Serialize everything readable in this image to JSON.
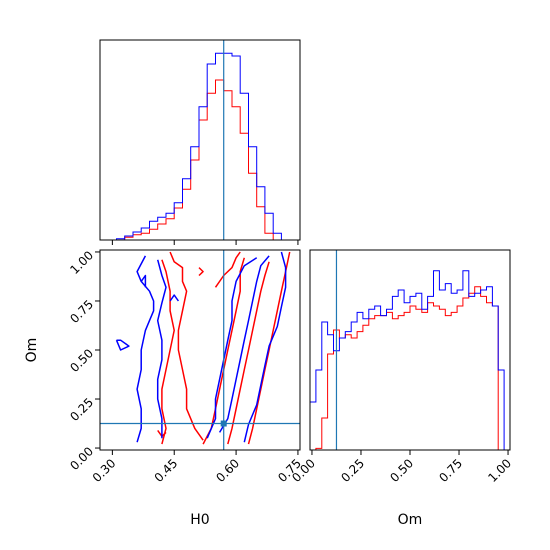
{
  "chart_data": {
    "type": "corner",
    "parameters": [
      "H0",
      "Om"
    ],
    "truth": {
      "H0": 0.57,
      "Om": 0.125
    },
    "truth_color": "#1f77b4",
    "series_colors": {
      "red": "#ff0000",
      "blue": "#0000ff"
    },
    "axes": {
      "H0": {
        "label": "H0",
        "range": [
          0.27,
          0.755
        ],
        "ticks": [
          "0.30",
          "0.45",
          "0.60",
          "0.75"
        ],
        "tick_values": [
          0.3,
          0.45,
          0.6,
          0.75
        ]
      },
      "Om": {
        "label": "Om",
        "range": [
          -0.01,
          1.01
        ],
        "ticks": [
          "0.00",
          "0.25",
          "0.50",
          "0.75",
          "1.00"
        ],
        "tick_values": [
          0.0,
          0.25,
          0.5,
          0.75,
          1.0
        ]
      }
    },
    "hist_H0": {
      "bin_edges": [
        0.27,
        0.29,
        0.31,
        0.33,
        0.35,
        0.37,
        0.39,
        0.41,
        0.43,
        0.45,
        0.47,
        0.49,
        0.51,
        0.53,
        0.55,
        0.57,
        0.59,
        0.61,
        0.63,
        0.65,
        0.67,
        0.69,
        0.71,
        0.73,
        0.755
      ],
      "series": [
        {
          "color": "red",
          "values": [
            0,
            0,
            0,
            2,
            4,
            5,
            8,
            12,
            16,
            24,
            38,
            60,
            90,
            110,
            120,
            112,
            100,
            80,
            50,
            25,
            5,
            0,
            0,
            0
          ]
        },
        {
          "color": "blue",
          "values": [
            0,
            0,
            1,
            3,
            6,
            9,
            14,
            17,
            20,
            28,
            46,
            70,
            100,
            132,
            140,
            140,
            138,
            110,
            70,
            40,
            20,
            5,
            0,
            0
          ]
        }
      ],
      "ymax": 150
    },
    "hist_Om": {
      "bin_edges": [
        -0.01,
        0.02,
        0.05,
        0.08,
        0.11,
        0.14,
        0.17,
        0.2,
        0.23,
        0.26,
        0.29,
        0.32,
        0.35,
        0.38,
        0.41,
        0.44,
        0.47,
        0.5,
        0.53,
        0.56,
        0.59,
        0.62,
        0.65,
        0.68,
        0.71,
        0.74,
        0.77,
        0.8,
        0.83,
        0.86,
        0.89,
        0.92,
        0.95,
        0.98,
        1.01
      ],
      "series": [
        {
          "color": "red",
          "values": [
            0,
            1,
            20,
            60,
            75,
            70,
            72,
            70,
            74,
            78,
            82,
            84,
            84,
            86,
            82,
            84,
            86,
            90,
            88,
            86,
            92,
            90,
            88,
            84,
            86,
            90,
            95,
            98,
            102,
            96,
            92,
            90,
            0,
            0
          ]
        },
        {
          "color": "blue",
          "values": [
            30,
            50,
            80,
            72,
            62,
            70,
            74,
            80,
            86,
            82,
            88,
            90,
            84,
            88,
            96,
            100,
            92,
            96,
            98,
            88,
            96,
            112,
            100,
            104,
            98,
            100,
            112,
            96,
            98,
            100,
            102,
            90,
            50,
            0
          ]
        }
      ],
      "ymax": 125
    },
    "contours": [
      {
        "color": "red",
        "lines": [
          [
            [
              0.42,
              0.96
            ],
            [
              0.43,
              0.9
            ],
            [
              0.44,
              0.8
            ],
            [
              0.44,
              0.7
            ],
            [
              0.45,
              0.6
            ],
            [
              0.44,
              0.5
            ],
            [
              0.43,
              0.4
            ],
            [
              0.42,
              0.3
            ],
            [
              0.42,
              0.2
            ],
            [
              0.43,
              0.1
            ],
            [
              0.42,
              0.02
            ]
          ],
          [
            [
              0.44,
              1.0
            ],
            [
              0.45,
              0.95
            ],
            [
              0.47,
              0.92
            ],
            [
              0.47,
              0.85
            ],
            [
              0.48,
              0.8
            ],
            [
              0.47,
              0.7
            ],
            [
              0.46,
              0.6
            ],
            [
              0.46,
              0.5
            ],
            [
              0.47,
              0.4
            ],
            [
              0.48,
              0.3
            ],
            [
              0.48,
              0.2
            ],
            [
              0.5,
              0.1
            ],
            [
              0.52,
              0.04
            ]
          ],
          [
            [
              0.52,
              0.02
            ],
            [
              0.54,
              0.1
            ],
            [
              0.55,
              0.2
            ],
            [
              0.56,
              0.3
            ],
            [
              0.57,
              0.4
            ],
            [
              0.58,
              0.5
            ],
            [
              0.59,
              0.6
            ],
            [
              0.6,
              0.7
            ],
            [
              0.61,
              0.8
            ],
            [
              0.61,
              0.9
            ],
            [
              0.62,
              0.97
            ]
          ],
          [
            [
              0.58,
              0.02
            ],
            [
              0.59,
              0.1
            ],
            [
              0.6,
              0.2
            ],
            [
              0.61,
              0.3
            ],
            [
              0.62,
              0.4
            ],
            [
              0.63,
              0.5
            ],
            [
              0.64,
              0.6
            ],
            [
              0.65,
              0.7
            ],
            [
              0.66,
              0.8
            ],
            [
              0.67,
              0.88
            ],
            [
              0.68,
              0.95
            ]
          ],
          [
            [
              0.63,
              0.02
            ],
            [
              0.64,
              0.1
            ],
            [
              0.65,
              0.2
            ],
            [
              0.66,
              0.3
            ],
            [
              0.67,
              0.4
            ],
            [
              0.68,
              0.5
            ],
            [
              0.69,
              0.6
            ],
            [
              0.7,
              0.7
            ],
            [
              0.71,
              0.8
            ],
            [
              0.72,
              0.9
            ],
            [
              0.73,
              1.0
            ]
          ],
          [
            [
              0.55,
              0.82
            ],
            [
              0.57,
              0.88
            ],
            [
              0.59,
              0.92
            ],
            [
              0.6,
              0.97
            ],
            [
              0.61,
              1.0
            ]
          ],
          [
            [
              0.41,
              0.09
            ],
            [
              0.42,
              0.06
            ],
            [
              0.43,
              0.08
            ]
          ],
          [
            [
              0.51,
              0.88
            ],
            [
              0.52,
              0.9
            ],
            [
              0.51,
              0.92
            ]
          ]
        ]
      },
      {
        "color": "blue",
        "lines": [
          [
            [
              0.38,
              0.98
            ],
            [
              0.36,
              0.9
            ],
            [
              0.37,
              0.85
            ],
            [
              0.39,
              0.8
            ],
            [
              0.4,
              0.75
            ],
            [
              0.4,
              0.7
            ],
            [
              0.39,
              0.65
            ],
            [
              0.38,
              0.6
            ],
            [
              0.37,
              0.5
            ],
            [
              0.37,
              0.4
            ],
            [
              0.36,
              0.3
            ],
            [
              0.37,
              0.2
            ],
            [
              0.37,
              0.1
            ],
            [
              0.36,
              0.03
            ]
          ],
          [
            [
              0.41,
              0.96
            ],
            [
              0.42,
              0.88
            ],
            [
              0.43,
              0.82
            ],
            [
              0.42,
              0.74
            ],
            [
              0.41,
              0.65
            ],
            [
              0.42,
              0.55
            ],
            [
              0.42,
              0.45
            ],
            [
              0.41,
              0.35
            ],
            [
              0.41,
              0.25
            ],
            [
              0.42,
              0.15
            ],
            [
              0.42,
              0.05
            ]
          ],
          [
            [
              0.53,
              0.05
            ],
            [
              0.55,
              0.15
            ],
            [
              0.55,
              0.25
            ],
            [
              0.56,
              0.35
            ],
            [
              0.57,
              0.45
            ],
            [
              0.58,
              0.55
            ],
            [
              0.59,
              0.65
            ],
            [
              0.59,
              0.75
            ],
            [
              0.6,
              0.85
            ],
            [
              0.62,
              0.93
            ],
            [
              0.65,
              0.97
            ]
          ],
          [
            [
              0.56,
              0.08
            ],
            [
              0.58,
              0.15
            ],
            [
              0.59,
              0.25
            ],
            [
              0.6,
              0.35
            ],
            [
              0.61,
              0.45
            ],
            [
              0.62,
              0.55
            ],
            [
              0.63,
              0.65
            ],
            [
              0.64,
              0.75
            ],
            [
              0.65,
              0.85
            ],
            [
              0.66,
              0.93
            ],
            [
              0.68,
              0.98
            ]
          ],
          [
            [
              0.62,
              0.03
            ],
            [
              0.63,
              0.12
            ],
            [
              0.65,
              0.22
            ],
            [
              0.66,
              0.32
            ],
            [
              0.67,
              0.42
            ],
            [
              0.68,
              0.52
            ],
            [
              0.7,
              0.62
            ],
            [
              0.71,
              0.72
            ],
            [
              0.72,
              0.82
            ],
            [
              0.72,
              0.92
            ],
            [
              0.71,
              1.0
            ]
          ],
          [
            [
              0.31,
              0.55
            ],
            [
              0.32,
              0.5
            ],
            [
              0.34,
              0.52
            ],
            [
              0.32,
              0.55
            ],
            [
              0.31,
              0.55
            ]
          ],
          [
            [
              0.37,
              0.85
            ],
            [
              0.38,
              0.88
            ],
            [
              0.38,
              0.82
            ]
          ],
          [
            [
              0.44,
              0.75
            ],
            [
              0.45,
              0.78
            ],
            [
              0.46,
              0.75
            ]
          ]
        ]
      }
    ]
  }
}
